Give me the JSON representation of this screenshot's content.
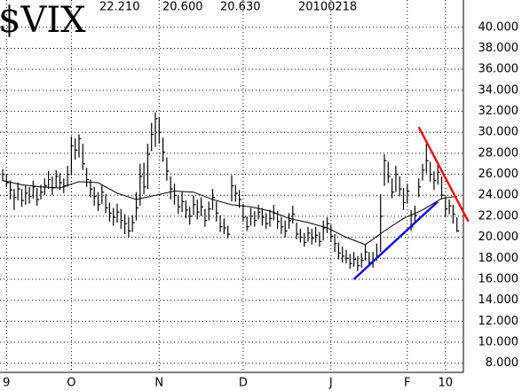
{
  "chart_data": {
    "type": "ohlc",
    "title": "$VIX",
    "annotations": [
      "22.210",
      "20.600",
      "20.630",
      "20100218"
    ],
    "categories": [
      null,
      "9",
      null,
      null,
      null,
      null,
      null,
      null,
      null,
      null,
      null,
      null,
      null,
      null,
      null,
      null,
      null,
      null,
      "O",
      null,
      null,
      null,
      null,
      null,
      null,
      null,
      null,
      null,
      null,
      null,
      null,
      null,
      null,
      null,
      null,
      null,
      null,
      null,
      null,
      null,
      null,
      "N",
      null,
      null,
      null,
      null,
      null,
      null,
      null,
      null,
      null,
      null,
      null,
      null,
      null,
      null,
      null,
      null,
      null,
      null,
      null,
      null,
      null,
      "D",
      null,
      null,
      null,
      null,
      null,
      null,
      null,
      null,
      null,
      null,
      null,
      null,
      null,
      null,
      null,
      null,
      null,
      null,
      null,
      null,
      null,
      null,
      "J",
      null,
      null,
      null,
      null,
      null,
      null,
      null,
      null,
      null,
      null,
      null,
      null,
      null,
      null,
      null,
      null,
      null,
      null,
      null,
      "F",
      null,
      null,
      null,
      null,
      null,
      null,
      null,
      null,
      null,
      "10",
      null,
      null,
      null
    ],
    "series": [
      {
        "color": "#000000",
        "high": [
          26.5,
          26.0,
          25.4,
          24.6,
          25.2,
          24.6,
          24.9,
          24.8,
          25.4,
          24.7,
          25.0,
          25.6,
          26.3,
          25.8,
          26.4,
          26.1,
          25.6,
          26.8,
          29.6,
          29.4,
          29.8,
          28.9,
          26.6,
          25.5,
          24.8,
          24.3,
          25.0,
          24.1,
          23.3,
          22.8,
          23.2,
          22.7,
          22.2,
          21.9,
          22.1,
          24.3,
          27.0,
          27.1,
          28.9,
          30.9,
          31.9,
          31.4,
          29.5,
          27.6,
          25.8,
          25.1,
          24.0,
          24.3,
          23.5,
          22.9,
          24.0,
          23.6,
          23.8,
          22.7,
          23.4,
          24.6,
          23.4,
          22.1,
          21.8,
          21.1,
          25.9,
          25.0,
          24.5,
          23.2,
          22.0,
          22.8,
          22.5,
          23.1,
          22.8,
          22.3,
          22.6,
          23.1,
          22.5,
          21.9,
          21.6,
          22.3,
          23.0,
          21.4,
          20.8,
          20.4,
          21.0,
          20.8,
          21.0,
          20.5,
          21.6,
          21.9,
          21.2,
          20.3,
          19.5,
          19.1,
          18.8,
          18.4,
          18.6,
          18.2,
          18.5,
          19.3,
          18.6,
          18.6,
          19.4,
          24.1,
          27.9,
          27.2,
          25.6,
          26.8,
          25.8,
          24.7,
          25.1,
          22.6,
          23.0,
          25.6,
          27.0,
          28.9,
          27.2,
          26.3,
          26.9,
          25.8,
          23.9,
          23.6,
          23.1,
          21.9
        ],
        "low": [
          25.4,
          24.8,
          23.6,
          22.6,
          23.5,
          22.9,
          23.1,
          23.2,
          23.7,
          23.0,
          23.6,
          24.0,
          24.6,
          24.0,
          24.7,
          24.5,
          24.2,
          24.8,
          25.9,
          27.4,
          27.6,
          26.4,
          24.8,
          23.8,
          23.0,
          22.5,
          23.2,
          22.3,
          21.5,
          21.1,
          21.4,
          20.8,
          20.3,
          20.0,
          20.5,
          21.6,
          23.0,
          24.1,
          24.6,
          28.2,
          28.6,
          28.9,
          27.2,
          25.4,
          23.6,
          23.1,
          22.2,
          22.4,
          21.8,
          21.2,
          22.1,
          21.7,
          22.0,
          21.0,
          21.6,
          22.6,
          21.5,
          20.5,
          20.3,
          19.9,
          23.4,
          23.4,
          22.8,
          21.5,
          20.6,
          21.1,
          21.0,
          21.7,
          21.1,
          20.8,
          21.0,
          21.6,
          20.8,
          20.3,
          20.0,
          20.8,
          21.3,
          19.8,
          19.5,
          19.1,
          19.6,
          19.3,
          19.5,
          19.1,
          19.7,
          20.4,
          19.6,
          18.6,
          17.9,
          17.6,
          17.5,
          17.0,
          17.2,
          16.8,
          17.1,
          17.8,
          17.2,
          17.1,
          17.8,
          18.6,
          24.9,
          25.2,
          23.7,
          24.3,
          23.9,
          22.6,
          23.2,
          20.6,
          21.3,
          23.8,
          25.4,
          26.1,
          25.3,
          24.5,
          25.0,
          23.6,
          22.0,
          22.2,
          21.3,
          20.5
        ],
        "close": [
          26.0,
          25.2,
          24.5,
          23.8,
          24.6,
          23.5,
          24.2,
          23.9,
          24.8,
          23.6,
          24.3,
          24.9,
          25.5,
          24.7,
          25.8,
          25.2,
          24.9,
          26.0,
          28.7,
          28.3,
          29.4,
          27.0,
          25.5,
          24.6,
          23.9,
          23.1,
          24.3,
          22.8,
          22.3,
          21.9,
          22.4,
          21.6,
          21.3,
          20.6,
          21.4,
          22.8,
          25.8,
          24.8,
          27.9,
          29.8,
          31.3,
          30.0,
          28.1,
          26.3,
          24.6,
          24.0,
          22.9,
          23.4,
          22.6,
          22.0,
          23.1,
          22.4,
          22.9,
          21.6,
          22.7,
          23.8,
          22.3,
          21.0,
          20.9,
          20.3,
          24.9,
          24.2,
          23.6,
          21.9,
          21.0,
          22.0,
          21.6,
          22.4,
          21.9,
          21.3,
          21.8,
          22.3,
          21.5,
          21.0,
          20.6,
          21.6,
          22.2,
          20.3,
          20.0,
          19.5,
          20.4,
          19.9,
          20.2,
          19.6,
          20.9,
          21.3,
          20.1,
          19.4,
          18.5,
          18.2,
          18.0,
          17.5,
          17.9,
          17.3,
          17.8,
          18.6,
          17.6,
          17.8,
          18.2,
          22.0,
          27.3,
          25.8,
          24.3,
          26.0,
          24.6,
          23.3,
          24.4,
          21.0,
          22.1,
          24.8,
          26.4,
          27.3,
          26.0,
          25.4,
          26.2,
          24.0,
          22.7,
          23.0,
          22.2,
          20.6
        ]
      }
    ],
    "lines": [
      {
        "color": "#000000",
        "x": [
          0,
          5,
          10,
          15,
          20,
          25,
          30,
          35,
          40,
          45,
          50,
          55,
          60,
          65,
          70,
          75,
          80,
          85,
          90,
          95,
          100,
          105,
          110,
          115,
          119
        ],
        "values": [
          25.4,
          25.0,
          24.8,
          24.7,
          25.3,
          25.2,
          24.2,
          23.6,
          24.0,
          24.4,
          24.3,
          23.6,
          23.1,
          22.9,
          22.5,
          21.8,
          21.4,
          20.9,
          20.0,
          19.3,
          20.6,
          21.8,
          22.6,
          23.7,
          23.9
        ]
      },
      {
        "color": "#ee1111",
        "x": [
          109,
          122
        ],
        "values": [
          30.5,
          21.5
        ]
      },
      {
        "color": "#1111dd",
        "x": [
          92,
          114
        ],
        "values": [
          16.0,
          23.4
        ]
      }
    ],
    "ylim": [
      7.3,
      42.6
    ],
    "yticks": [
      {
        "value": 8,
        "label": "8.000"
      },
      {
        "value": 10,
        "label": "10.000"
      },
      {
        "value": 12,
        "label": "12.000"
      },
      {
        "value": 14,
        "label": "14.000"
      },
      {
        "value": 16,
        "label": "16.000"
      },
      {
        "value": 18,
        "label": "18.000"
      },
      {
        "value": 20,
        "label": "20.000"
      },
      {
        "value": 22,
        "label": "22.000"
      },
      {
        "value": 24,
        "label": "24.000"
      },
      {
        "value": 26,
        "label": "26.000"
      },
      {
        "value": 28,
        "label": "28.000"
      },
      {
        "value": 30,
        "label": "30.000"
      },
      {
        "value": 32,
        "label": "32.000"
      },
      {
        "value": 34,
        "label": "34.000"
      },
      {
        "value": 36,
        "label": "36.000"
      },
      {
        "value": 38,
        "label": "38.000"
      },
      {
        "value": 40,
        "label": "40.000"
      }
    ],
    "grid": true
  }
}
